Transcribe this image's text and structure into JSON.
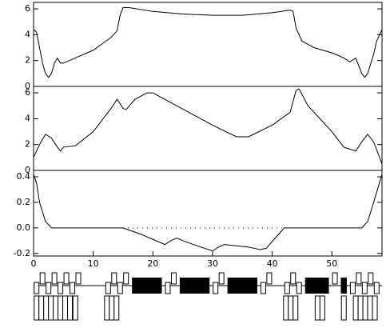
{
  "chart_data": [
    {
      "type": "line",
      "x": [
        0,
        0.5,
        1,
        1.5,
        2,
        2.5,
        3,
        3.5,
        4,
        4.5,
        5,
        7,
        10,
        13,
        14,
        14.5,
        15,
        16,
        20,
        25,
        30,
        35,
        40,
        43,
        43.5,
        44,
        45,
        47,
        50,
        52,
        53,
        54,
        55,
        55.5,
        56,
        57,
        57.5,
        58.4
      ],
      "series": [
        {
          "color": "#000000",
          "values": [
            4.4,
            4.2,
            3,
            1.8,
            1.0,
            0.7,
            1.0,
            1.8,
            2.2,
            1.8,
            1.8,
            2.2,
            2.8,
            3.8,
            4.3,
            5.5,
            6.1,
            6.1,
            5.8,
            5.6,
            5.5,
            5.5,
            5.7,
            5.9,
            5.8,
            4.5,
            3.5,
            3.0,
            2.6,
            2.2,
            1.9,
            2.2,
            1.0,
            0.7,
            1.0,
            2.5,
            3.5,
            4.4
          ]
        }
      ],
      "xlim": [
        0,
        58.4
      ],
      "ylim": [
        0,
        6.5
      ],
      "yticks": [
        0,
        2,
        4,
        6
      ]
    },
    {
      "type": "line",
      "x": [
        0,
        1,
        2,
        3,
        4,
        4.5,
        5,
        7,
        10,
        13,
        14,
        15,
        15.5,
        17,
        19,
        20,
        22,
        26,
        30,
        34,
        36,
        40,
        43,
        44,
        44.5,
        46,
        50,
        52,
        54,
        55,
        56,
        57,
        58.4
      ],
      "series": [
        {
          "color": "#000000",
          "values": [
            1.0,
            2.0,
            2.8,
            2.5,
            1.8,
            1.5,
            1.8,
            1.9,
            3.0,
            4.8,
            5.5,
            4.8,
            4.7,
            5.5,
            6.0,
            6.0,
            5.5,
            4.5,
            3.5,
            2.6,
            2.6,
            3.5,
            4.5,
            6.2,
            6.3,
            5.0,
            3.0,
            1.8,
            1.5,
            2.2,
            2.8,
            2.2,
            0.5
          ]
        }
      ],
      "xlim": [
        0,
        58.4
      ],
      "ylim": [
        0,
        6.5
      ],
      "yticks": [
        0,
        2,
        4,
        6
      ]
    },
    {
      "type": "line",
      "x": [
        0,
        0.5,
        1,
        2,
        3,
        15,
        18,
        22,
        23,
        24,
        25,
        28,
        30,
        31,
        32,
        36,
        38,
        39,
        42,
        55,
        56,
        57,
        58.4
      ],
      "series": [
        {
          "color": "#000000",
          "values": [
            0.42,
            0.35,
            0.2,
            0.05,
            0,
            0,
            -0.05,
            -0.13,
            -0.1,
            -0.08,
            -0.1,
            -0.15,
            -0.18,
            -0.15,
            -0.13,
            -0.15,
            -0.17,
            -0.16,
            0,
            0,
            0.05,
            0.2,
            0.42
          ]
        }
      ],
      "xlim": [
        0,
        58.4
      ],
      "ylim": [
        -0.22,
        0.45
      ],
      "yticks": [
        {
          "value": -0.2,
          "label": "-0.2"
        },
        {
          "value": 0,
          "label": "0.0"
        },
        {
          "value": 0.2,
          "label": "0.2"
        },
        {
          "value": 0.4,
          "label": "0.4"
        }
      ],
      "xticks": [
        0,
        10,
        20,
        30,
        40,
        50
      ]
    }
  ]
}
